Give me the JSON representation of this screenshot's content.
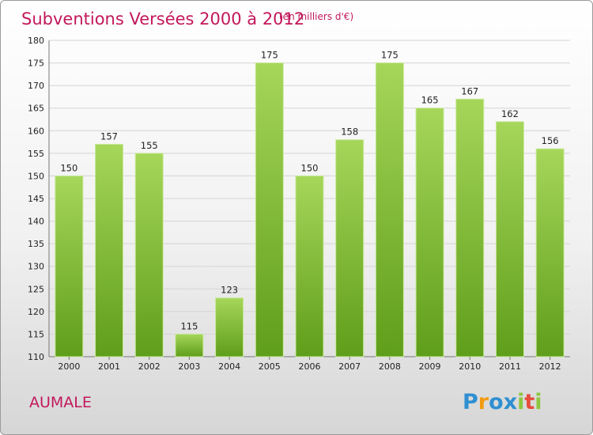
{
  "chart_data": {
    "type": "bar",
    "title": "Subventions Versées 2000 à 2012",
    "subtitle": "(en milliers d'€)",
    "categories": [
      "2000",
      "2001",
      "2002",
      "2003",
      "2004",
      "2005",
      "2006",
      "2007",
      "2008",
      "2009",
      "2010",
      "2011",
      "2012"
    ],
    "values": [
      150,
      157,
      155,
      115,
      123,
      175,
      150,
      158,
      175,
      165,
      167,
      162,
      156
    ],
    "value_labels": [
      "150",
      "157",
      "155",
      "115",
      "123",
      "175",
      "150",
      "158",
      "175",
      "165",
      "167",
      "162",
      "156"
    ],
    "ylim": [
      110,
      180
    ],
    "y_ticks": [
      "110",
      "115",
      "120",
      "125",
      "130",
      "135",
      "140",
      "145",
      "150",
      "155",
      "160",
      "165",
      "170",
      "175",
      "180"
    ],
    "xlabel": "",
    "ylabel": "",
    "grid": true,
    "legend": "none",
    "bar_color_top": "#a6d65a",
    "bar_color_bottom": "#5f9e1a"
  },
  "commune": "AUMALE",
  "logo": {
    "letters": [
      "P",
      "r",
      "o",
      "x",
      "i",
      "t",
      "i"
    ],
    "colors": [
      "#2f8fd1",
      "#f39c12",
      "#2f8fd1",
      "#2f8fd1",
      "#8cc63f",
      "#e74c3c",
      "#8cc63f"
    ]
  }
}
